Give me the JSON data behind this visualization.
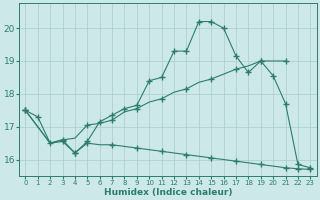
{
  "xlabel": "Humidex (Indice chaleur)",
  "bg_color": "#cce8e8",
  "grid_color": "#aacccc",
  "line_color": "#2d7d6e",
  "xlim": [
    -0.5,
    23.5
  ],
  "ylim": [
    15.5,
    20.75
  ],
  "yticks": [
    16,
    17,
    18,
    19,
    20
  ],
  "xticks": [
    0,
    1,
    2,
    3,
    4,
    5,
    6,
    7,
    8,
    9,
    10,
    11,
    12,
    13,
    14,
    15,
    16,
    17,
    18,
    19,
    20,
    21,
    22,
    23
  ],
  "line1_x": [
    0,
    1,
    2,
    3,
    4,
    5,
    6,
    7,
    8,
    9,
    10,
    11,
    12,
    13,
    14,
    15,
    16,
    17,
    18,
    19,
    20,
    21,
    22,
    23
  ],
  "line1_y": [
    17.5,
    17.3,
    16.5,
    16.55,
    16.2,
    16.55,
    17.15,
    17.35,
    17.55,
    17.65,
    18.4,
    18.5,
    19.3,
    19.3,
    20.2,
    20.2,
    20.0,
    19.15,
    18.65,
    19.0,
    18.55,
    17.7,
    15.85,
    15.75
  ],
  "line1_markers": [
    0,
    1,
    2,
    3,
    4,
    5,
    6,
    7,
    8,
    9,
    10,
    11,
    12,
    13,
    14,
    15,
    16,
    17,
    18,
    19,
    20,
    21,
    22,
    23
  ],
  "line2_x": [
    0,
    2,
    3,
    4,
    5,
    6,
    7,
    8,
    9,
    10,
    11,
    12,
    13,
    14,
    15,
    16,
    17,
    18,
    19,
    20,
    21
  ],
  "line2_y": [
    17.5,
    16.5,
    16.6,
    16.65,
    17.05,
    17.1,
    17.2,
    17.45,
    17.55,
    17.75,
    17.85,
    18.05,
    18.15,
    18.35,
    18.45,
    18.6,
    18.75,
    18.85,
    19.0,
    19.0,
    19.0
  ],
  "line2_markers_x": [
    0,
    5,
    7,
    9,
    11,
    13,
    15,
    17,
    19,
    21
  ],
  "line2_markers_y": [
    17.5,
    17.05,
    17.2,
    17.55,
    17.85,
    18.15,
    18.45,
    18.75,
    19.0,
    19.0
  ],
  "line3_x": [
    0,
    2,
    3,
    4,
    5,
    6,
    7,
    8,
    9,
    10,
    11,
    12,
    13,
    14,
    15,
    16,
    17,
    18,
    19,
    20,
    21,
    22,
    23
  ],
  "line3_y": [
    17.5,
    16.5,
    16.6,
    16.2,
    16.5,
    16.45,
    16.45,
    16.4,
    16.35,
    16.3,
    16.25,
    16.2,
    16.15,
    16.1,
    16.05,
    16.0,
    15.95,
    15.9,
    15.85,
    15.8,
    15.75,
    15.72,
    15.7
  ],
  "line3_markers_x": [
    0,
    3,
    4,
    5,
    7,
    9,
    11,
    13,
    15,
    17,
    19,
    21,
    22,
    23
  ],
  "line3_markers_y": [
    17.5,
    16.6,
    16.2,
    16.5,
    16.45,
    16.35,
    16.25,
    16.15,
    16.05,
    15.95,
    15.85,
    15.75,
    15.72,
    15.7
  ]
}
